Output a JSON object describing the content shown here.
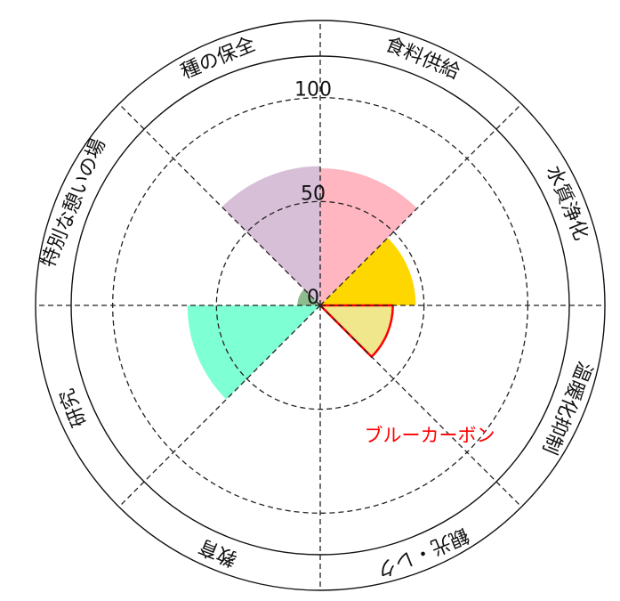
{
  "chart_data": {
    "type": "polar-bar",
    "title": "",
    "r_ticks": [
      0,
      50,
      100
    ],
    "r_tick_labels": [
      "0",
      "50",
      "100"
    ],
    "rlim": [
      0,
      120
    ],
    "grid": true,
    "sectors": [
      {
        "label": "種の保全",
        "value": 67,
        "color": "#D8BFD8"
      },
      {
        "label": "食料供給",
        "value": 66,
        "color": "#FFB6C1"
      },
      {
        "label": "水質浄化",
        "value": 46,
        "color": "#FFD700"
      },
      {
        "label": "温暖化抑制",
        "value": 35,
        "color": "#F0E68C",
        "highlight_color": "#FF0000"
      },
      {
        "label": "観光・レク",
        "value": 0,
        "color": "#DDDDDD"
      },
      {
        "label": "教育",
        "value": 0,
        "color": "#DDDDDD"
      },
      {
        "label": "研究",
        "value": 64,
        "color": "#7FFFD4"
      },
      {
        "label": "特別な憩いの場",
        "value": 11,
        "color": "#8FBC8F"
      }
    ],
    "annotation": {
      "text": "ブルーカーボン",
      "color": "#FF0000"
    }
  }
}
